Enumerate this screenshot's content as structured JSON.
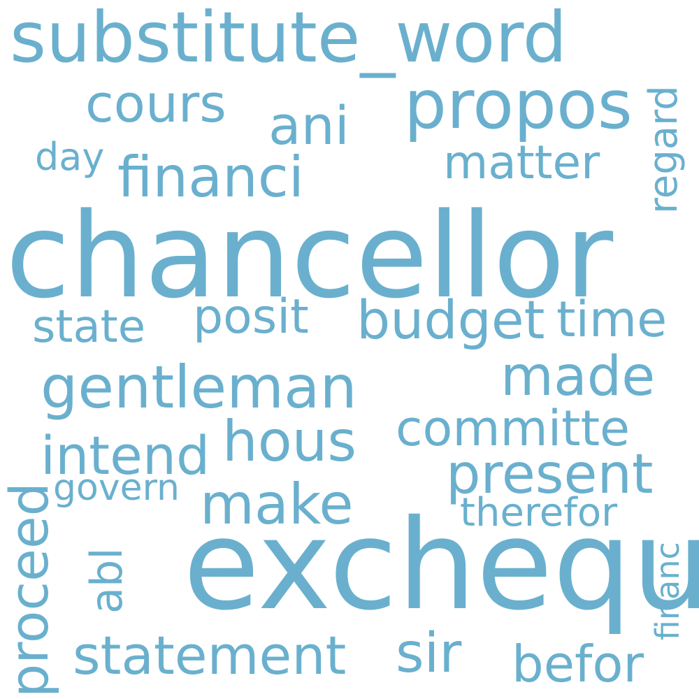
{
  "word_color": "#6AB0CE",
  "background_color": "#FFFFFF",
  "words": {
    "substitute_word": "substitute_word",
    "chancellor": "chancellor",
    "exchequ": "exchequ",
    "propos": "propos",
    "cours": "cours",
    "ani": "ani",
    "day": "day",
    "financi": "financi",
    "matter": "matter",
    "regard": "regard",
    "state": "state",
    "posit": "posit",
    "budget": "budget",
    "time": "time",
    "gentleman": "gentleman",
    "made": "made",
    "hous": "hous",
    "committe": "committe",
    "intend": "intend",
    "present": "present",
    "govern": "govern",
    "make": "make",
    "therefor": "therefor",
    "proceed": "proceed",
    "abl": "abl",
    "financ": "financ",
    "statement": "statement",
    "sir": "sir",
    "befor": "befor"
  }
}
